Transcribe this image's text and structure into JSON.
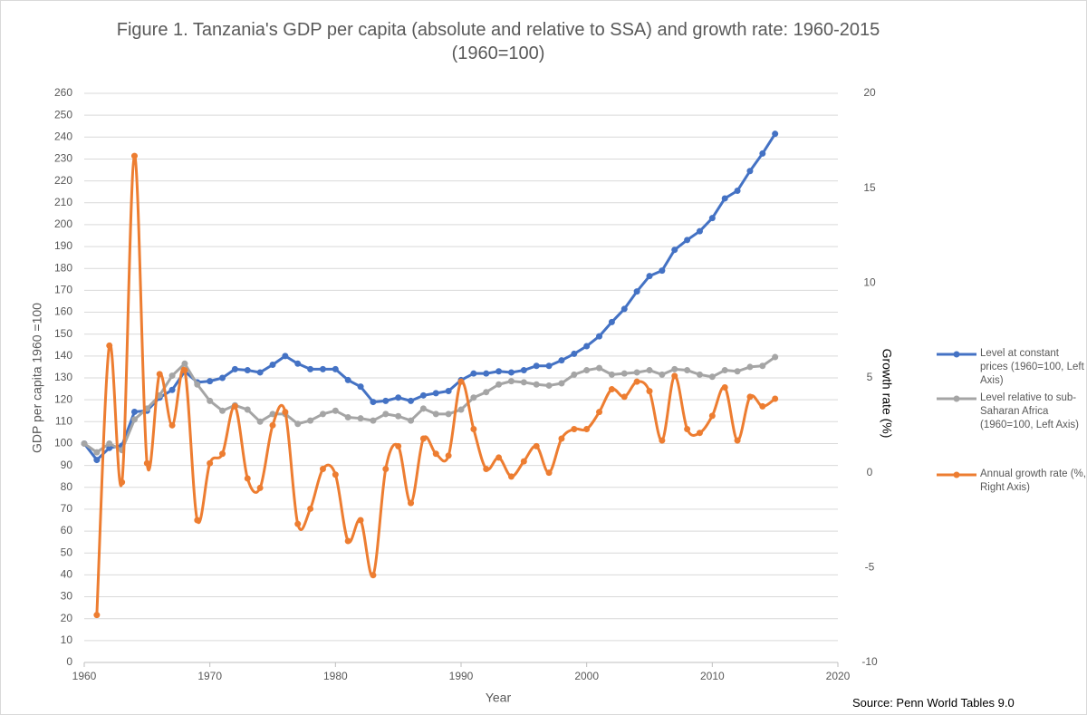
{
  "chart_data": {
    "type": "line",
    "title": "Figure 1. Tanzania's GDP per capita (absolute and relative to SSA) and growth rate: 1960-2015 (1960=100)",
    "x_label": "Year",
    "y_label": "GDP per capita 1960  =100",
    "y2_label": "Growth rate (%)",
    "source": "Source: Penn World Tables 9.0",
    "x": [
      1960,
      1961,
      1962,
      1963,
      1964,
      1965,
      1966,
      1967,
      1968,
      1969,
      1970,
      1971,
      1972,
      1973,
      1974,
      1975,
      1976,
      1977,
      1978,
      1979,
      1980,
      1981,
      1982,
      1983,
      1984,
      1985,
      1986,
      1987,
      1988,
      1989,
      1990,
      1991,
      1992,
      1993,
      1994,
      1995,
      1996,
      1997,
      1998,
      1999,
      2000,
      2001,
      2002,
      2003,
      2004,
      2005,
      2006,
      2007,
      2008,
      2009,
      2010,
      2011,
      2012,
      2013,
      2014,
      2015
    ],
    "xlim": [
      1960,
      2020
    ],
    "xticks": [
      1960,
      1970,
      1980,
      1990,
      2000,
      2010,
      2020
    ],
    "ylim": [
      0,
      260
    ],
    "yticks": [
      0,
      10,
      20,
      30,
      40,
      50,
      60,
      70,
      80,
      90,
      100,
      110,
      120,
      130,
      140,
      150,
      160,
      170,
      180,
      190,
      200,
      210,
      220,
      230,
      240,
      250,
      260
    ],
    "y2lim": [
      -10,
      20
    ],
    "y2ticks": [
      -10,
      -5,
      0,
      5,
      10,
      15,
      20
    ],
    "grid": true,
    "legend": "right",
    "series": [
      {
        "name": "Level at constant prices (1960=100, Left Axis)",
        "color": "#4472c4",
        "axis": "y",
        "smooth": false,
        "values": [
          100,
          92.5,
          98,
          99,
          114.5,
          115,
          121,
          124.5,
          133,
          128,
          128.5,
          130,
          134,
          133.5,
          132.5,
          136,
          140,
          136.5,
          134,
          134,
          134,
          129,
          126,
          119,
          119.5,
          121,
          119.5,
          122,
          123,
          124,
          129,
          132,
          132,
          133,
          132.5,
          133.5,
          135.5,
          135.5,
          138,
          141,
          144.5,
          149,
          155.5,
          161.5,
          169.5,
          176.5,
          179,
          188.5,
          193,
          197,
          203,
          212,
          215.5,
          224.5,
          232.5,
          241.5
        ]
      },
      {
        "name": "Level relative to sub-Saharan Africa (1960=100, Left Axis)",
        "color": "#a5a5a5",
        "axis": "y",
        "smooth": false,
        "values": [
          100,
          96,
          100,
          97,
          111,
          116,
          122,
          131,
          136.5,
          127,
          119.5,
          115,
          117.5,
          115.5,
          110,
          113.5,
          113.5,
          109,
          110.5,
          113.5,
          115,
          112,
          111.5,
          110.5,
          113.5,
          112.5,
          110.5,
          116,
          113.5,
          113.5,
          115.5,
          121,
          123.5,
          127,
          128.5,
          128,
          127,
          126.5,
          127.5,
          131.5,
          133.5,
          134.5,
          131.5,
          132,
          132.5,
          133.5,
          131.5,
          134,
          133.5,
          131.5,
          130.5,
          133.5,
          133,
          135,
          135.5,
          139.5
        ]
      },
      {
        "name": "Annual growth rate (%, Right Axis)",
        "color": "#ed7d31",
        "axis": "y2",
        "smooth": true,
        "values": [
          null,
          -7.5,
          6.7,
          -0.5,
          16.7,
          0.5,
          5.2,
          2.5,
          5.4,
          -2.5,
          0.5,
          1,
          3.5,
          -0.3,
          -0.8,
          2.5,
          3.2,
          -2.7,
          -1.9,
          0.2,
          -0.1,
          -3.6,
          -2.5,
          -5.4,
          0.2,
          1.4,
          -1.6,
          1.8,
          1,
          0.9,
          4.8,
          2.3,
          0.2,
          0.8,
          -0.2,
          0.6,
          1.4,
          0,
          1.8,
          2.3,
          2.3,
          3.2,
          4.4,
          4,
          4.8,
          4.3,
          1.7,
          5.1,
          2.3,
          2.1,
          3,
          4.5,
          1.7,
          4,
          3.5,
          3.9
        ]
      }
    ]
  }
}
